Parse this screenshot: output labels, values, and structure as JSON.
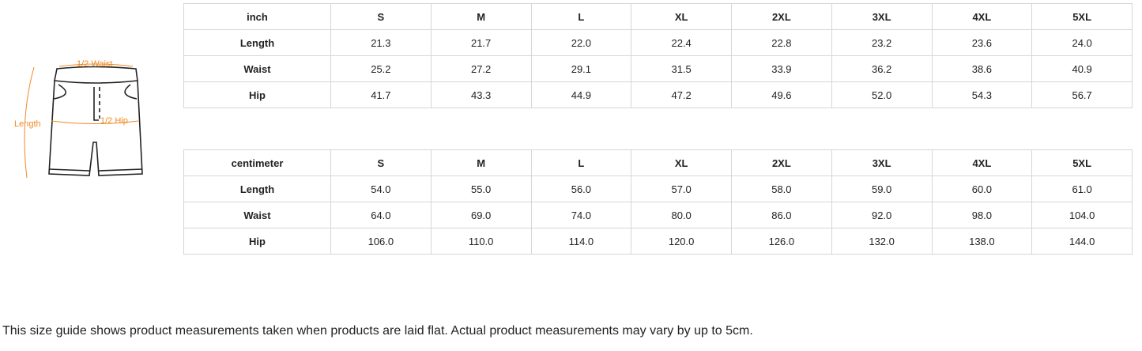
{
  "illustration": {
    "labels": {
      "waist": "1/2 Waist",
      "hip": "1/2 Hip",
      "length": "Length"
    },
    "accent_color": "#f08a24"
  },
  "tables": [
    {
      "unit": "inch",
      "sizes": [
        "S",
        "M",
        "L",
        "XL",
        "2XL",
        "3XL",
        "4XL",
        "5XL"
      ],
      "rows": [
        {
          "label": "Length",
          "values": [
            "21.3",
            "21.7",
            "22.0",
            "22.4",
            "22.8",
            "23.2",
            "23.6",
            "24.0"
          ]
        },
        {
          "label": "Waist",
          "values": [
            "25.2",
            "27.2",
            "29.1",
            "31.5",
            "33.9",
            "36.2",
            "38.6",
            "40.9"
          ]
        },
        {
          "label": "Hip",
          "values": [
            "41.7",
            "43.3",
            "44.9",
            "47.2",
            "49.6",
            "52.0",
            "54.3",
            "56.7"
          ]
        }
      ]
    },
    {
      "unit": "centimeter",
      "sizes": [
        "S",
        "M",
        "L",
        "XL",
        "2XL",
        "3XL",
        "4XL",
        "5XL"
      ],
      "rows": [
        {
          "label": "Length",
          "values": [
            "54.0",
            "55.0",
            "56.0",
            "57.0",
            "58.0",
            "59.0",
            "60.0",
            "61.0"
          ]
        },
        {
          "label": "Waist",
          "values": [
            "64.0",
            "69.0",
            "74.0",
            "80.0",
            "86.0",
            "92.0",
            "98.0",
            "104.0"
          ]
        },
        {
          "label": "Hip",
          "values": [
            "106.0",
            "110.0",
            "114.0",
            "120.0",
            "126.0",
            "132.0",
            "138.0",
            "144.0"
          ]
        }
      ]
    }
  ],
  "note": "This size guide shows product measurements taken when products are laid flat. Actual product measurements may vary by up to 5cm."
}
